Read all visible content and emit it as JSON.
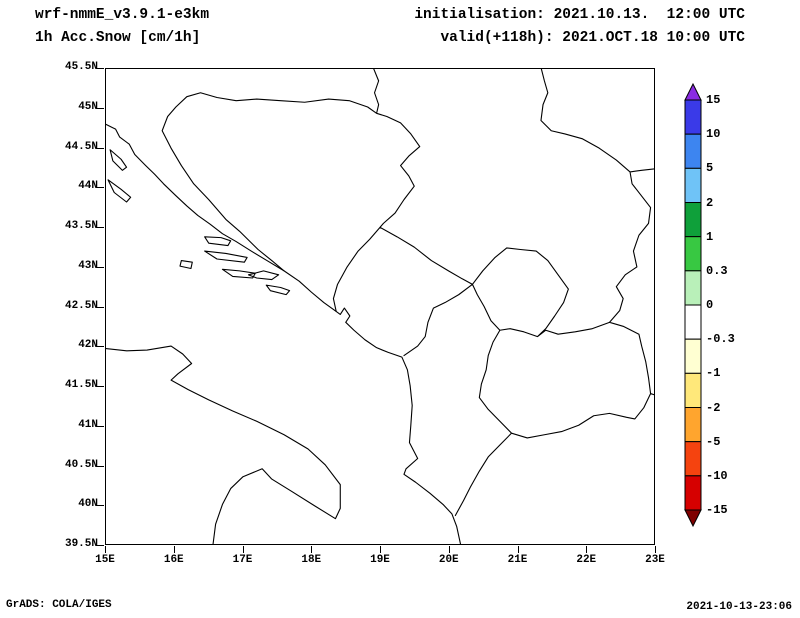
{
  "header": {
    "model_line": "wrf-nmmE_v3.9.1-e3km",
    "field_line": "1h Acc.Snow [cm/1h]",
    "init_line": "initialisation: 2021.10.13.  12:00 UTC",
    "valid_line": "valid(+118h): 2021.OCT.18 10:00 UTC"
  },
  "footer": {
    "left": "GrADS: COLA/IGES",
    "right": "2021-10-13-23:06"
  },
  "chart_data": {
    "type": "heatmap",
    "title": "1h Acc.Snow [cm/1h]",
    "model": "wrf-nmmE_v3.9.1-e3km",
    "initialisation": "2021.10.13. 12:00 UTC",
    "valid": "2021.OCT.18 10:00 UTC (+118h)",
    "region": "Adriatic / Balkans",
    "grid": false,
    "legend_position": "right",
    "x": {
      "label": "longitude",
      "range": [
        15,
        23
      ],
      "ticks": [
        "15E",
        "16E",
        "17E",
        "18E",
        "19E",
        "20E",
        "21E",
        "22E",
        "23E"
      ]
    },
    "y": {
      "label": "latitude",
      "range": [
        39.5,
        45.5
      ],
      "ticks": [
        "45.5N",
        "45N",
        "44.5N",
        "44N",
        "43.5N",
        "43N",
        "42.5N",
        "42N",
        "41.5N",
        "41N",
        "40.5N",
        "40N",
        "39.5N"
      ]
    },
    "field_values": "blank map area: no 1h snow accumulation at or above the lowest shaded level anywhere in the domain",
    "colorbar": {
      "levels": [
        15,
        10,
        5,
        2,
        1,
        0.3,
        0,
        -0.3,
        -1,
        -2,
        -5,
        -10,
        -15
      ],
      "labels": [
        "15",
        "10",
        "5",
        "2",
        "1",
        "0.3",
        "0",
        "-0.3",
        "-1",
        "-2",
        "-5",
        "-10",
        "-15"
      ],
      "segment_colors_top_to_bottom": [
        "#3a3ae8",
        "#3d85f0",
        "#6fc3f7",
        "#0fa03a",
        "#38c842",
        "#b9f0b9",
        "#ffffff",
        "#ffffd2",
        "#ffe87a",
        "#ffa52e",
        "#f5430f",
        "#d60000"
      ],
      "arrow_up_color": "#8a2be2",
      "arrow_down_color": "#7f0000",
      "outline_color": "#000000"
    }
  }
}
